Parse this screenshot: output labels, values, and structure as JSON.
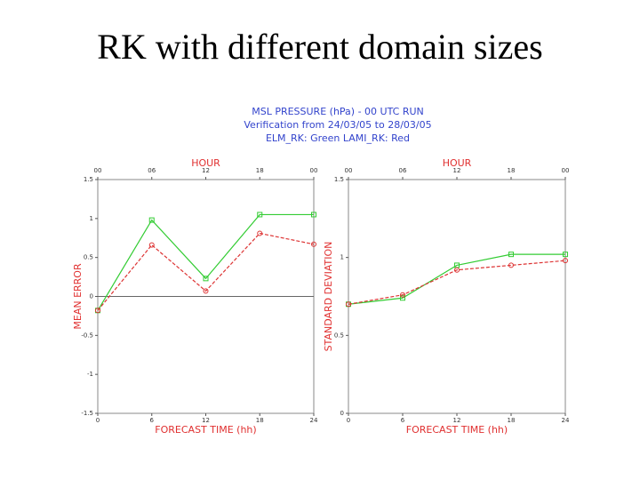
{
  "title": "RK with different domain sizes",
  "header_lines": [
    "MSL PRESSURE (hPa) - 00 UTC RUN",
    "Verification from 24/03/05 to 28/03/05",
    "ELM_RK: Green   LAMI_RK: Red"
  ],
  "chart_data": [
    {
      "type": "line",
      "ylabel": "MEAN ERROR",
      "xlabel": "FORECAST TIME (hh)",
      "top_title": "HOUR",
      "top_labels": [
        "00",
        "06",
        "12",
        "18",
        "00"
      ],
      "x": [
        0,
        6,
        12,
        18,
        24
      ],
      "xlim": [
        0,
        24
      ],
      "xticks": [
        0,
        6,
        12,
        18,
        24
      ],
      "ylim": [
        -1.5,
        1.5
      ],
      "yticks": [
        -1.5,
        -1,
        -0.5,
        0,
        0.5,
        1,
        1.5
      ],
      "zero_line": true,
      "series": [
        {
          "color": "#33cc33",
          "marker": "square",
          "dash": false,
          "values": [
            -0.18,
            0.98,
            0.23,
            1.05,
            1.05
          ]
        },
        {
          "color": "#dd3333",
          "marker": "circle",
          "dash": true,
          "values": [
            -0.18,
            0.66,
            0.07,
            0.81,
            0.67
          ]
        }
      ]
    },
    {
      "type": "line",
      "ylabel": "STANDARD DEVIATION",
      "xlabel": "FORECAST TIME (hh)",
      "top_title": "HOUR",
      "top_labels": [
        "00",
        "06",
        "12",
        "18",
        "00"
      ],
      "x": [
        0,
        6,
        12,
        18,
        24
      ],
      "xlim": [
        0,
        24
      ],
      "xticks": [
        0,
        6,
        12,
        18,
        24
      ],
      "ylim": [
        0,
        1.5
      ],
      "yticks": [
        0,
        0.5,
        1,
        1.5
      ],
      "zero_line": false,
      "series": [
        {
          "color": "#33cc33",
          "marker": "square",
          "dash": false,
          "values": [
            0.7,
            0.74,
            0.95,
            1.02,
            1.02
          ]
        },
        {
          "color": "#dd3333",
          "marker": "circle",
          "dash": true,
          "values": [
            0.7,
            0.76,
            0.92,
            0.95,
            0.98
          ]
        }
      ]
    }
  ]
}
